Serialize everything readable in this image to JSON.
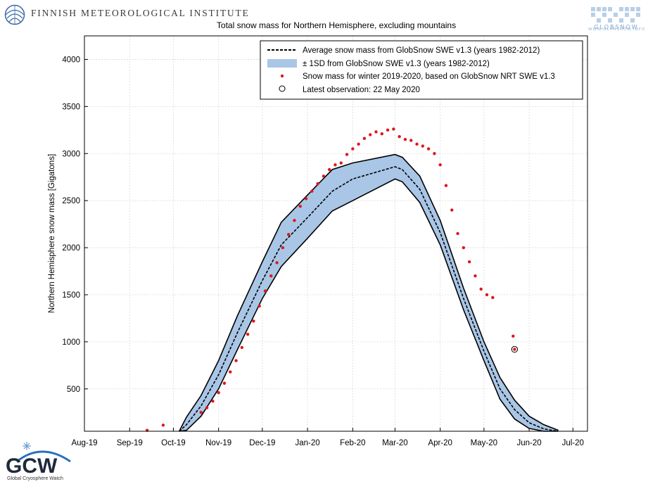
{
  "header": {
    "institute_name": "FINNISH METEOROLOGICAL INSTITUTE",
    "globsnow_brand": "GLOBSNOW",
    "globsnow_url": "WWW.GLOBSNOW.INFO",
    "gcw_brand": "GCW",
    "gcw_name": "Global Cryosphere Watch"
  },
  "colors": {
    "band_fill": "#a9c6e6",
    "band_edge": "#000000",
    "mean_line": "#000000",
    "obs_points": "#e0161d",
    "grid": "#d9d9d9"
  },
  "chart_data": {
    "type": "line",
    "title": "Total snow mass for Northern Hemisphere, excluding mountains",
    "ylabel": "Northern Hemisphere snow mass [Gigatons]",
    "xlabel": "",
    "ylim": [
      50,
      4250
    ],
    "yticks": [
      500,
      1000,
      1500,
      2000,
      2500,
      3000,
      3500,
      4000
    ],
    "xlim": [
      0,
      345
    ],
    "xtick_positions": [
      0,
      31,
      61,
      92,
      122,
      153,
      184,
      213,
      244,
      274,
      305,
      335
    ],
    "xtick_labels": [
      "Aug-19",
      "Sep-19",
      "Oct-19",
      "Nov-19",
      "Dec-19",
      "Jan-20",
      "Feb-20",
      "Mar-20",
      "Apr-20",
      "May-20",
      "Jun-20",
      "Jul-20"
    ],
    "x_units": "days since 1 Aug 2019",
    "legend": {
      "placement": "top-right",
      "entries": [
        "Average snow mass from GlobSnow SWE v1.3 (years 1982-2012)",
        "± 1SD from GlobSnow SWE v1.3 (years 1982-2012)",
        "Snow mass for winter 2019-2020, based on GlobSnow NRT SWE v1.3",
        "Latest observation: 22 May 2020"
      ]
    },
    "series": [
      {
        "name": "Average snow mass (1982-2012)",
        "style": "dashed",
        "x": [
          65,
          70,
          80,
          92,
          105,
          122,
          135,
          153,
          170,
          184,
          213,
          218,
          230,
          244,
          260,
          274,
          285,
          295,
          305,
          315,
          325
        ],
        "values": [
          50,
          120,
          320,
          650,
          1100,
          1650,
          2030,
          2320,
          2600,
          2730,
          2860,
          2830,
          2620,
          2160,
          1460,
          900,
          500,
          280,
          140,
          75,
          50
        ]
      },
      {
        "name": "+1SD",
        "style": "band-upper",
        "x": [
          65,
          70,
          80,
          92,
          105,
          122,
          135,
          153,
          170,
          184,
          213,
          218,
          230,
          244,
          260,
          274,
          285,
          295,
          305,
          315,
          325
        ],
        "values": [
          50,
          200,
          430,
          800,
          1280,
          1850,
          2270,
          2560,
          2830,
          2900,
          2990,
          2960,
          2760,
          2290,
          1570,
          1000,
          620,
          380,
          210,
          120,
          60
        ]
      },
      {
        "name": "-1SD",
        "style": "band-lower",
        "x": [
          65,
          70,
          80,
          92,
          105,
          122,
          135,
          153,
          170,
          184,
          213,
          218,
          230,
          244,
          260,
          274,
          285,
          295,
          305,
          315,
          325
        ],
        "values": [
          50,
          60,
          210,
          500,
          920,
          1460,
          1800,
          2100,
          2390,
          2500,
          2730,
          2700,
          2480,
          2030,
          1340,
          800,
          390,
          180,
          80,
          50,
          50
        ]
      },
      {
        "name": "Snow mass winter 2019-2020 (NRT)",
        "style": "points",
        "x": [
          43,
          54,
          80,
          84,
          88,
          92,
          96,
          100,
          104,
          108,
          112,
          116,
          120,
          124,
          128,
          132,
          136,
          140,
          144,
          148,
          152,
          156,
          160,
          164,
          168,
          172,
          176,
          180,
          184,
          188,
          192,
          196,
          200,
          204,
          208,
          212,
          216,
          220,
          224,
          228,
          232,
          236,
          240,
          244,
          248,
          252,
          256,
          260,
          264,
          268,
          272,
          276,
          280,
          294
        ],
        "values": [
          60,
          115,
          250,
          300,
          370,
          460,
          560,
          680,
          800,
          940,
          1080,
          1220,
          1380,
          1540,
          1700,
          1840,
          2000,
          2140,
          2290,
          2440,
          2520,
          2600,
          2680,
          2760,
          2830,
          2880,
          2900,
          2990,
          3050,
          3100,
          3160,
          3200,
          3230,
          3210,
          3250,
          3260,
          3180,
          3150,
          3140,
          3100,
          3080,
          3050,
          3000,
          2880,
          2660,
          2400,
          2150,
          2000,
          1850,
          1700,
          1560,
          1500,
          1470,
          1060
        ]
      },
      {
        "name": "Latest observation",
        "style": "circle",
        "x": [
          295
        ],
        "values": [
          920
        ]
      }
    ]
  }
}
